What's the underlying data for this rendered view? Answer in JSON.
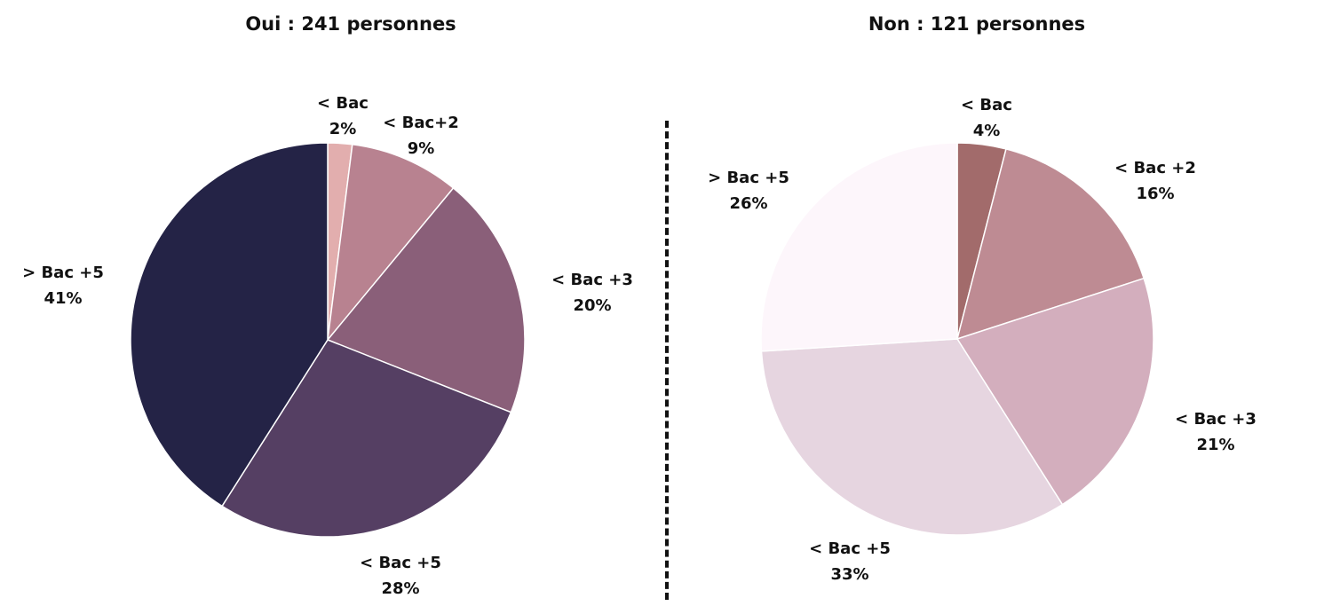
{
  "chart_data": [
    {
      "type": "pie",
      "title": "Oui : 241 personnes",
      "slices": [
        {
          "label": "< Bac",
          "value": 2,
          "value_label": "2%",
          "color": "#e2aeae"
        },
        {
          "label": "< Bac+2",
          "value": 9,
          "value_label": "9%",
          "color": "#b88290"
        },
        {
          "label": "< Bac +3",
          "value": 20,
          "value_label": "20%",
          "color": "#8a5f79"
        },
        {
          "label": "< Bac +5",
          "value": 28,
          "value_label": "28%",
          "color": "#553f63"
        },
        {
          "label": "> Bac +5",
          "value": 41,
          "value_label": "41%",
          "color": "#242346"
        }
      ]
    },
    {
      "type": "pie",
      "title": "Non : 121 personnes",
      "slices": [
        {
          "label": "< Bac",
          "value": 4,
          "value_label": "4%",
          "color": "#a26b6b"
        },
        {
          "label": "< Bac +2",
          "value": 16,
          "value_label": "16%",
          "color": "#be8b93"
        },
        {
          "label": "< Bac +3",
          "value": 21,
          "value_label": "21%",
          "color": "#d3aebd"
        },
        {
          "label": "< Bac +5",
          "value": 33,
          "value_label": "33%",
          "color": "#e6d5e0"
        },
        {
          "label": "> Bac +5",
          "value": 26,
          "value_label": "26%",
          "color": "#fdf6fb"
        }
      ]
    }
  ]
}
